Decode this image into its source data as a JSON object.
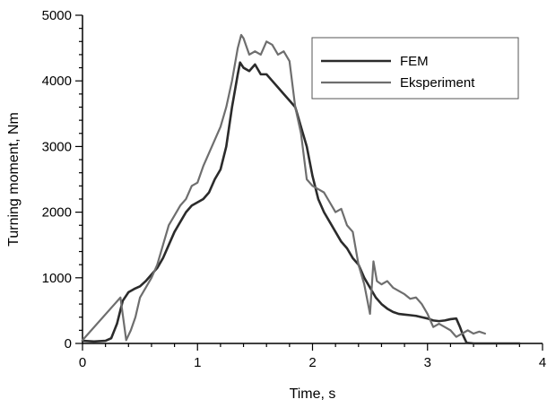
{
  "chart_data": {
    "type": "line",
    "title": "",
    "xlabel": "Time, s",
    "ylabel": "Turning moment, Nm",
    "xlim": [
      0,
      4
    ],
    "ylim": [
      0,
      5000
    ],
    "x_ticks": [
      0,
      1,
      2,
      3,
      4
    ],
    "y_ticks": [
      0,
      1000,
      2000,
      3000,
      4000,
      5000
    ],
    "x_tick_labels": [
      "0",
      "1",
      "2",
      "3",
      "4"
    ],
    "y_tick_labels": [
      "0",
      "1000",
      "2000",
      "3000",
      "4000",
      "5000"
    ],
    "grid": false,
    "legend_position": "top-right",
    "series": [
      {
        "name": "FEM",
        "color": "#2b2b2b",
        "x": [
          0.0,
          0.1,
          0.2,
          0.25,
          0.3,
          0.35,
          0.4,
          0.45,
          0.5,
          0.55,
          0.6,
          0.65,
          0.7,
          0.75,
          0.8,
          0.85,
          0.9,
          0.95,
          1.0,
          1.05,
          1.1,
          1.15,
          1.2,
          1.25,
          1.3,
          1.35,
          1.37,
          1.4,
          1.45,
          1.5,
          1.55,
          1.6,
          1.65,
          1.7,
          1.75,
          1.8,
          1.85,
          1.9,
          1.95,
          2.0,
          2.05,
          2.1,
          2.15,
          2.2,
          2.25,
          2.3,
          2.35,
          2.4,
          2.45,
          2.5,
          2.55,
          2.6,
          2.65,
          2.7,
          2.75,
          2.8,
          2.85,
          2.9,
          2.95,
          3.0,
          3.05,
          3.1,
          3.15,
          3.2,
          3.25,
          3.28,
          3.31,
          3.34,
          3.4,
          3.6,
          3.8
        ],
        "values": [
          40,
          30,
          40,
          80,
          300,
          650,
          780,
          830,
          870,
          950,
          1050,
          1150,
          1300,
          1500,
          1700,
          1850,
          2000,
          2100,
          2150,
          2200,
          2300,
          2500,
          2650,
          3000,
          3600,
          4100,
          4280,
          4200,
          4150,
          4250,
          4100,
          4100,
          4000,
          3900,
          3800,
          3700,
          3600,
          3300,
          3000,
          2550,
          2200,
          2000,
          1850,
          1700,
          1550,
          1450,
          1300,
          1200,
          1000,
          850,
          700,
          600,
          530,
          480,
          450,
          440,
          430,
          420,
          400,
          380,
          350,
          340,
          350,
          370,
          380,
          260,
          120,
          10,
          0,
          0,
          0
        ]
      },
      {
        "name": "Eksperiment",
        "color": "#6e6e6e",
        "x": [
          0.0,
          0.33,
          0.38,
          0.42,
          0.46,
          0.5,
          0.55,
          0.6,
          0.65,
          0.7,
          0.75,
          0.8,
          0.85,
          0.9,
          0.95,
          1.0,
          1.05,
          1.1,
          1.15,
          1.2,
          1.25,
          1.3,
          1.35,
          1.38,
          1.4,
          1.45,
          1.5,
          1.55,
          1.6,
          1.65,
          1.7,
          1.75,
          1.8,
          1.85,
          1.9,
          1.95,
          2.0,
          2.05,
          2.1,
          2.15,
          2.2,
          2.25,
          2.3,
          2.35,
          2.4,
          2.45,
          2.5,
          2.53,
          2.56,
          2.6,
          2.65,
          2.7,
          2.75,
          2.8,
          2.85,
          2.9,
          2.95,
          3.0,
          3.05,
          3.1,
          3.15,
          3.2,
          3.25,
          3.3,
          3.35,
          3.4,
          3.45,
          3.5
        ],
        "values": [
          50,
          700,
          50,
          200,
          400,
          700,
          850,
          1000,
          1200,
          1500,
          1800,
          1950,
          2100,
          2200,
          2400,
          2450,
          2700,
          2900,
          3100,
          3300,
          3600,
          4000,
          4500,
          4700,
          4650,
          4400,
          4450,
          4400,
          4600,
          4550,
          4400,
          4450,
          4300,
          3600,
          3200,
          2500,
          2400,
          2350,
          2300,
          2150,
          2000,
          2050,
          1800,
          1700,
          1200,
          900,
          450,
          1250,
          950,
          900,
          950,
          850,
          800,
          750,
          680,
          700,
          600,
          450,
          250,
          300,
          250,
          200,
          100,
          150,
          200,
          150,
          180,
          150
        ]
      }
    ]
  }
}
